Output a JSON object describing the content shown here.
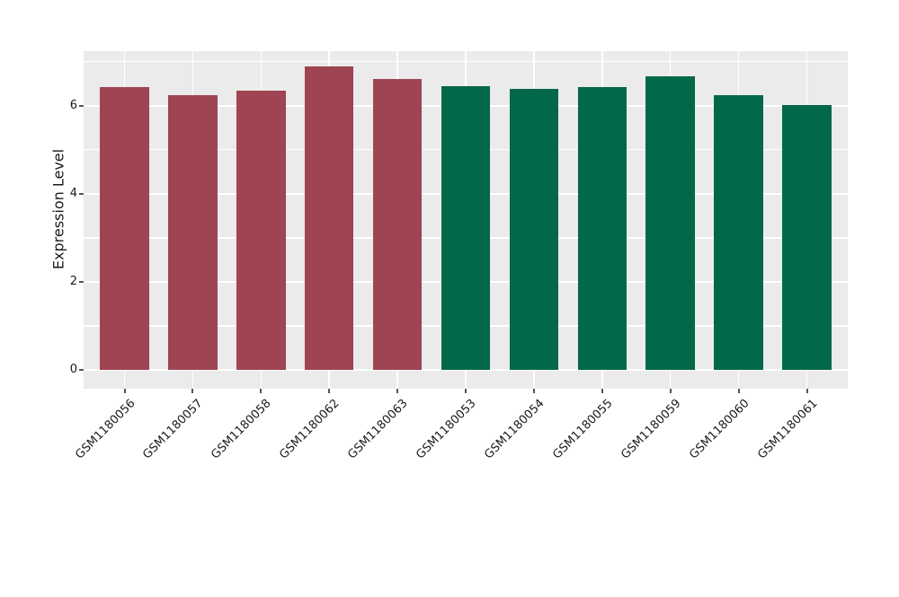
{
  "chart_data": {
    "type": "bar",
    "title": "",
    "xlabel": "",
    "ylabel": "Expression Level",
    "categories": [
      "GSM1180056",
      "GSM1180057",
      "GSM1180058",
      "GSM1180062",
      "GSM1180063",
      "GSM1180053",
      "GSM1180054",
      "GSM1180055",
      "GSM1180059",
      "GSM1180060",
      "GSM1180061"
    ],
    "values": [
      6.43,
      6.24,
      6.35,
      6.9,
      6.61,
      6.45,
      6.39,
      6.43,
      6.67,
      6.24,
      6.02
    ],
    "groups": [
      "group1",
      "group1",
      "group1",
      "group1",
      "group1",
      "group2",
      "group2",
      "group2",
      "group2",
      "group2",
      "group2"
    ],
    "group_colors": {
      "group1": "#9E4452",
      "group2": "#02684A"
    },
    "ytick_labels": [
      "0",
      "2",
      "4",
      "6"
    ],
    "yticks_major": [
      0,
      2,
      4,
      6
    ],
    "yticks_minor": [
      1,
      3,
      5,
      7
    ],
    "ylim": [
      -0.43,
      7.24
    ],
    "xlim": [
      0.4,
      11.6
    ],
    "bar_width": 0.72,
    "x_tick_rotation_deg": 45,
    "grid": "on",
    "legend": "none",
    "panel_background": "#EBEBEB",
    "gridline_color": "#FFFFFF",
    "figure_background": "#FFFFFF",
    "tick_mark_color": "#555555",
    "text_color": "#1A1A1A"
  }
}
